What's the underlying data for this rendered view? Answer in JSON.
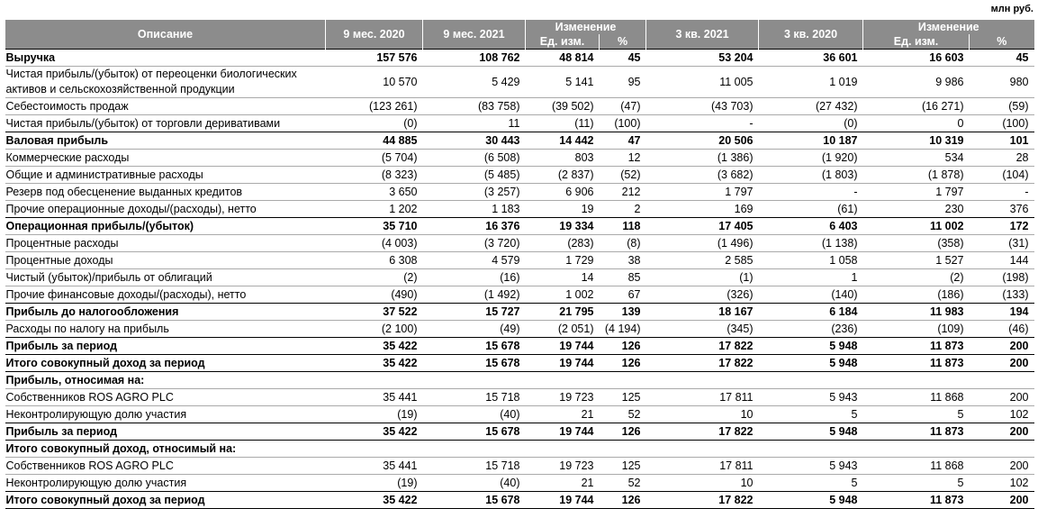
{
  "unit": "млн руб.",
  "header": {
    "description": "Описание",
    "col1": "9 мес. 2020",
    "col2": "9 мес. 2021",
    "change": "Изменение",
    "abs": "Ед. изм.",
    "pct": "%",
    "col5": "3 кв. 2021",
    "col6": "3 кв. 2020",
    "change2": "Изменение",
    "abs2": "Ед. изм.",
    "pct2": "%"
  },
  "rows": [
    {
      "c": [
        "Выручка",
        "157 576",
        "108 762",
        "48 814",
        "45",
        "53 204",
        "36 601",
        "16 603",
        "45"
      ]
    },
    {
      "c": [
        "Чистая прибыль/(убыток) от переоценки биологических активов и сельскохозяйственной продукции",
        "10 570",
        "5 429",
        "5 141",
        "95",
        "11 005",
        "1 019",
        "9 986",
        "980"
      ]
    },
    {
      "c": [
        "Себестоимость продаж",
        "(123 261)",
        "(83 758)",
        "(39 502)",
        "(47)",
        "(43 703)",
        "(27 432)",
        "(16 271)",
        "(59)"
      ]
    },
    {
      "c": [
        "Чистая прибыль/(убыток) от торговли деривативами",
        "(0)",
        "11",
        "(11)",
        "(100)",
        "-",
        "(0)",
        "0",
        "(100)"
      ]
    },
    {
      "c": [
        "Валовая прибыль",
        "44 885",
        "30 443",
        "14 442",
        "47",
        "20 506",
        "10 187",
        "10 319",
        "101"
      ]
    },
    {
      "c": [
        "Коммерческие расходы",
        "(5 704)",
        "(6 508)",
        "803",
        "12",
        "(1 386)",
        "(1 920)",
        "534",
        "28"
      ]
    },
    {
      "c": [
        "Общие и административные расходы",
        "(8 323)",
        "(5 485)",
        "(2 837)",
        "(52)",
        "(3 682)",
        "(1 803)",
        "(1 878)",
        "(104)"
      ]
    },
    {
      "c": [
        "Резерв под обесценение выданных кредитов",
        "3 650",
        "(3 257)",
        "6 906",
        "212",
        "1 797",
        "-",
        "1 797",
        "-"
      ]
    },
    {
      "c": [
        "Прочие операционные доходы/(расходы), нетто",
        "1 202",
        "1 183",
        "19",
        "2",
        "169",
        "(61)",
        "230",
        "376"
      ]
    },
    {
      "c": [
        "Операционная прибыль/(убыток)",
        "35 710",
        "16 376",
        "19 334",
        "118",
        "17 405",
        "6 403",
        "11 002",
        "172"
      ]
    },
    {
      "c": [
        "Процентные расходы",
        "(4 003)",
        "(3 720)",
        "(283)",
        "(8)",
        "(1 496)",
        "(1 138)",
        "(358)",
        "(31)"
      ]
    },
    {
      "c": [
        "Процентные доходы",
        "6 308",
        "4 579",
        "1 729",
        "38",
        "2 585",
        "1 058",
        "1 527",
        "144"
      ]
    },
    {
      "c": [
        "Чистый (убыток)/прибыль от облигаций",
        "(2)",
        "(16)",
        "14",
        "85",
        "(1)",
        "1",
        "(2)",
        "(198)"
      ]
    },
    {
      "c": [
        "Прочие финансовые доходы/(расходы), нетто",
        "(490)",
        "(1 492)",
        "1 002",
        "67",
        "(326)",
        "(140)",
        "(186)",
        "(133)"
      ]
    },
    {
      "c": [
        "Прибыль до налогообложения",
        "37 522",
        "15 727",
        "21 795",
        "139",
        "18 167",
        "6 184",
        "11 983",
        "194"
      ]
    },
    {
      "c": [
        "Расходы по налогу на прибыль",
        "(2 100)",
        "(49)",
        "(2 051)",
        "(4 194)",
        "(345)",
        "(236)",
        "(109)",
        "(46)"
      ]
    },
    {
      "c": [
        "Прибыль за период",
        "35 422",
        "15 678",
        "19 744",
        "126",
        "17 822",
        "5 948",
        "11 873",
        "200"
      ]
    },
    {
      "c": [
        "Итого совокупный доход за период",
        "35 422",
        "15 678",
        "19 744",
        "126",
        "17 822",
        "5 948",
        "11 873",
        "200"
      ]
    },
    {
      "c": [
        "Прибыль, относимая на:",
        "",
        "",
        "",
        "",
        "",
        "",
        "",
        ""
      ]
    },
    {
      "c": [
        "Собственников ROS AGRO PLC",
        "35 441",
        "15 718",
        "19 723",
        "125",
        "17 811",
        "5 943",
        "11 868",
        "200"
      ]
    },
    {
      "c": [
        "Неконтролирующую долю участия",
        "(19)",
        "(40)",
        "21",
        "52",
        "10",
        "5",
        "5",
        "102"
      ]
    },
    {
      "c": [
        "Прибыль за период",
        "35 422",
        "15 678",
        "19 744",
        "126",
        "17 822",
        "5 948",
        "11 873",
        "200"
      ]
    },
    {
      "c": [
        "Итого совокупный доход, относимый на:",
        "",
        "",
        "",
        "",
        "",
        "",
        "",
        ""
      ]
    },
    {
      "c": [
        "Собственников ROS AGRO PLC",
        "35 441",
        "15 718",
        "19 723",
        "125",
        "17 811",
        "5 943",
        "11 868",
        "200"
      ]
    },
    {
      "c": [
        "Неконтролирующую долю участия",
        "(19)",
        "(40)",
        "21",
        "52",
        "10",
        "5",
        "5",
        "102"
      ]
    },
    {
      "c": [
        "Итого совокупный доход за период",
        "35 422",
        "15 678",
        "19 744",
        "126",
        "17 822",
        "5 948",
        "11 873",
        "200"
      ]
    }
  ]
}
